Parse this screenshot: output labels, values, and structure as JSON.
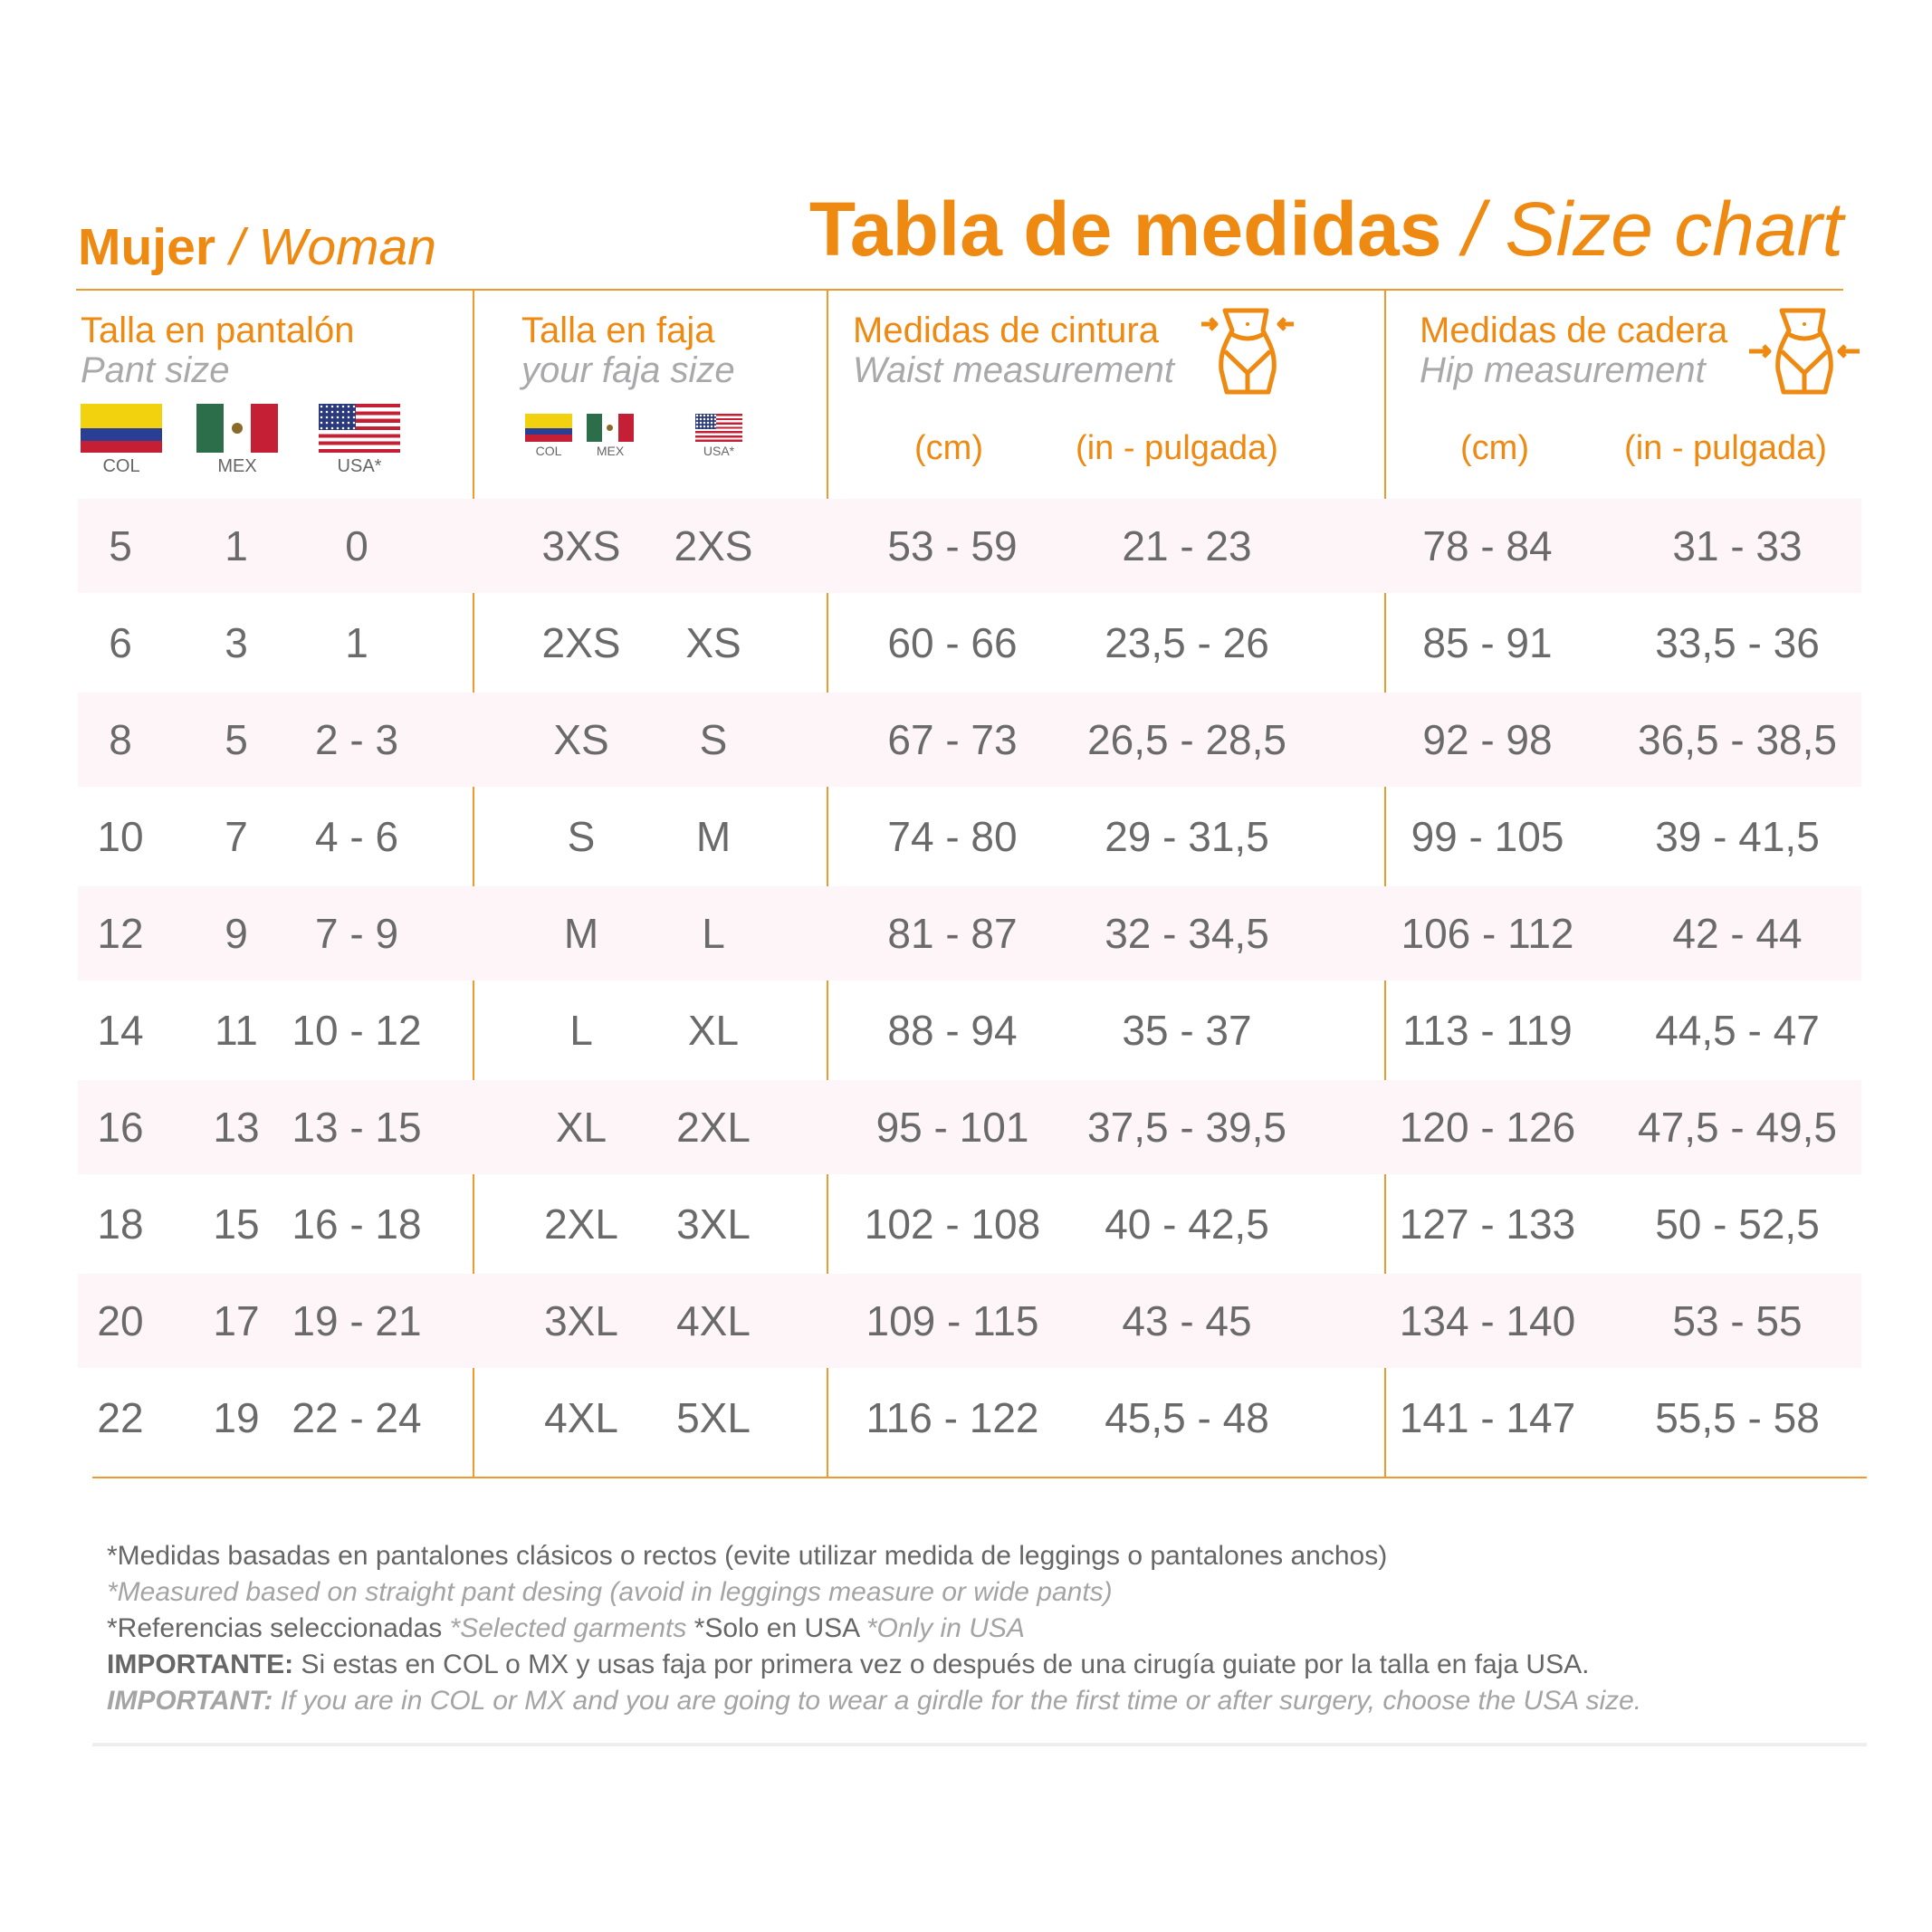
{
  "header": {
    "mujer": "Mujer",
    "woman": "/ Woman",
    "title_es": "Tabla de medidas",
    "title_en": "/ Size chart"
  },
  "colors": {
    "accent": "#ee8a12",
    "row_tint": "#fdf5f8",
    "text": "#6a6a6a"
  },
  "columns": {
    "pant": {
      "es": "Talla en pantalón",
      "en": "Pant size",
      "flags": [
        "COL",
        "MEX",
        "USA*"
      ]
    },
    "faja": {
      "es": "Talla en faja",
      "en": "your faja size",
      "flags": [
        "COL",
        "MEX",
        "USA*"
      ]
    },
    "waist": {
      "es": "Medidas de cintura",
      "en": "Waist measurement",
      "unit_cm": "(cm)",
      "unit_in": "(in - pulgada)",
      "icon": "waist-body-icon"
    },
    "hip": {
      "es": "Medidas de cadera",
      "en": "Hip measurement",
      "unit_cm": "(cm)",
      "unit_in": "(in - pulgada)",
      "icon": "hip-body-icon"
    }
  },
  "rows": [
    [
      "5",
      "1",
      "0",
      "3XS",
      "2XS",
      "53 - 59",
      "21 - 23",
      "78 - 84",
      "31 - 33"
    ],
    [
      "6",
      "3",
      "1",
      "2XS",
      "XS",
      "60 - 66",
      "23,5 - 26",
      "85 - 91",
      "33,5 - 36"
    ],
    [
      "8",
      "5",
      "2 - 3",
      "XS",
      "S",
      "67 - 73",
      "26,5 - 28,5",
      "92 - 98",
      "36,5 - 38,5"
    ],
    [
      "10",
      "7",
      "4 - 6",
      "S",
      "M",
      "74 - 80",
      "29 - 31,5",
      "99 - 105",
      "39 - 41,5"
    ],
    [
      "12",
      "9",
      "7 - 9",
      "M",
      "L",
      "81 - 87",
      "32 - 34,5",
      "106 - 112",
      "42 - 44"
    ],
    [
      "14",
      "11",
      "10 - 12",
      "L",
      "XL",
      "88 - 94",
      "35 - 37",
      "113 - 119",
      "44,5 - 47"
    ],
    [
      "16",
      "13",
      "13 - 15",
      "XL",
      "2XL",
      "95 - 101",
      "37,5 - 39,5",
      "120 - 126",
      "47,5 - 49,5"
    ],
    [
      "18",
      "15",
      "16 - 18",
      "2XL",
      "3XL",
      "102 - 108",
      "40 - 42,5",
      "127 - 133",
      "50 - 52,5"
    ],
    [
      "20",
      "17",
      "19 - 21",
      "3XL",
      "4XL",
      "109 - 115",
      "43 - 45",
      "134 - 140",
      "53 - 55"
    ],
    [
      "22",
      "19",
      "22 - 24",
      "4XL",
      "5XL",
      "116 - 122",
      "45,5 - 48",
      "141 - 147",
      "55,5 - 58"
    ]
  ],
  "footer": {
    "l1": "*Medidas basadas en pantalones clásicos o rectos (evite utilizar medida de leggings o pantalones anchos)",
    "l2": "*Measured based on straight pant desing (avoid in leggings measure or wide pants)",
    "l3a": "*Referencias seleccionadas ",
    "l3b": "*Selected garments ",
    "l3c": "*Solo en USA ",
    "l3d": "*Only in USA",
    "l4a": "IMPORTANTE:",
    "l4b": " Si estas en COL o MX y usas faja por primera vez o después de una cirugía guiate por la talla en faja USA.",
    "l5a": "IMPORTANT:",
    "l5b": " If you are in COL or MX and you are going to wear a girdle for the first time or after surgery, choose the USA size."
  }
}
